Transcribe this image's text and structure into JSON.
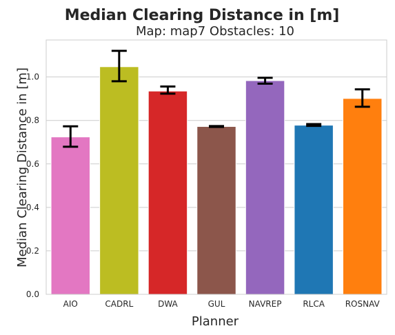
{
  "chart_data": {
    "type": "bar",
    "suptitle": "Median Clearing Distance in [m]",
    "title": "Map: map7 Obstacles: 10",
    "xlabel": "Planner",
    "ylabel": "Median Clearing Distance in [m]",
    "categories": [
      "AIO",
      "CADRL",
      "DWA",
      "GUL",
      "NAVREP",
      "RLCA",
      "ROSNAV"
    ],
    "values": [
      0.724,
      1.047,
      0.935,
      0.772,
      0.983,
      0.778,
      0.901
    ],
    "error_low": [
      0.679,
      0.98,
      0.923,
      0.77,
      0.969,
      0.775,
      0.863
    ],
    "error_high": [
      0.773,
      1.12,
      0.956,
      0.774,
      0.996,
      0.783,
      0.943
    ],
    "colors": [
      "#e377c2",
      "#bcbd22",
      "#d62728",
      "#8c564b",
      "#9467bd",
      "#1f77b4",
      "#ff7f0e"
    ],
    "ylim": [
      0,
      1.17
    ],
    "yticks": [
      0.0,
      0.2,
      0.4,
      0.6,
      0.8,
      1.0
    ],
    "ytick_labels": [
      "0.0",
      "0.2",
      "0.4",
      "0.6",
      "0.8",
      "1.0"
    ],
    "grid": true,
    "grid_color": "#cccccc",
    "text_color": "#262626"
  }
}
